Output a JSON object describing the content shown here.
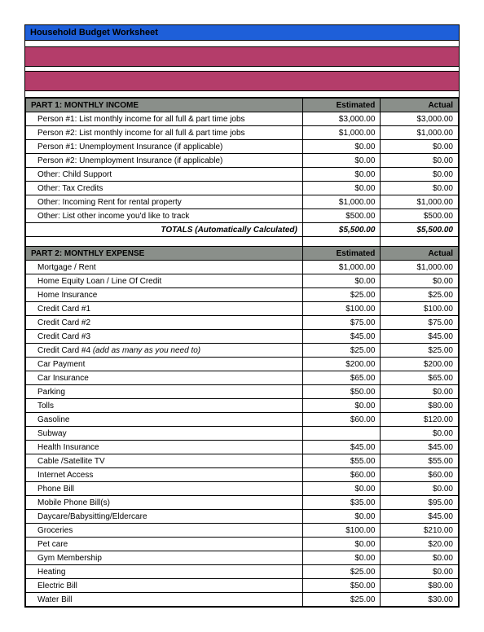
{
  "title": "Household Budget Worksheet",
  "colors": {
    "title_bg": "#1e5fd9",
    "band_bg": "#b43d6a",
    "section_bg": "#8a8f8a",
    "border": "#000000",
    "page_bg": "#ffffff"
  },
  "fonts": {
    "family": "Arial, sans-serif",
    "title_size": 11,
    "body_size": 10
  },
  "columns": {
    "estimated": "Estimated",
    "actual": "Actual"
  },
  "sections": [
    {
      "header": "PART 1: MONTHLY INCOME",
      "rows": [
        {
          "label": "Person #1: List monthly income for all full & part time jobs",
          "estimated": "$3,000.00",
          "actual": "$3,000.00"
        },
        {
          "label": "Person #2: List monthly income for all full & part time jobs",
          "estimated": "$1,000.00",
          "actual": "$1,000.00"
        },
        {
          "label": "Person #1: Unemployment Insurance (if applicable)",
          "estimated": "$0.00",
          "actual": "$0.00"
        },
        {
          "label": "Person #2: Unemployment Insurance (if applicable)",
          "estimated": "$0.00",
          "actual": "$0.00"
        },
        {
          "label": "Other: Child Support",
          "estimated": "$0.00",
          "actual": "$0.00"
        },
        {
          "label": "Other: Tax Credits",
          "estimated": "$0.00",
          "actual": "$0.00"
        },
        {
          "label": "Other: Incoming Rent for rental property",
          "estimated": "$1,000.00",
          "actual": "$1,000.00"
        },
        {
          "label": "Other: List other income you'd like to track",
          "estimated": "$500.00",
          "actual": "$500.00"
        }
      ],
      "totals": {
        "label": "TOTALS (Automatically Calculated)",
        "estimated": "$5,500.00",
        "actual": "$5,500.00"
      }
    },
    {
      "header": "PART 2: MONTHLY EXPENSE",
      "rows": [
        {
          "label": "Mortgage / Rent",
          "estimated": "$1,000.00",
          "actual": "$1,000.00"
        },
        {
          "label": "Home Equity Loan / Line Of Credit",
          "estimated": "$0.00",
          "actual": "$0.00"
        },
        {
          "label": "Home Insurance",
          "estimated": "$25.00",
          "actual": "$25.00"
        },
        {
          "label": "Credit Card #1",
          "estimated": "$100.00",
          "actual": "$100.00"
        },
        {
          "label": "Credit Card #2",
          "estimated": "$75.00",
          "actual": "$75.00"
        },
        {
          "label": "Credit Card #3",
          "estimated": "$45.00",
          "actual": "$45.00"
        },
        {
          "label": "Credit Card #4 (add as many as you need to)",
          "estimated": "$25.00",
          "actual": "$25.00",
          "italic_tail": true
        },
        {
          "label": "Car Payment",
          "estimated": "$200.00",
          "actual": "$200.00"
        },
        {
          "label": "Car Insurance",
          "estimated": "$65.00",
          "actual": "$65.00"
        },
        {
          "label": "Parking",
          "estimated": "$50.00",
          "actual": "$0.00"
        },
        {
          "label": "Tolls",
          "estimated": "$0.00",
          "actual": "$80.00"
        },
        {
          "label": "Gasoline",
          "estimated": "$60.00",
          "actual": "$120.00"
        },
        {
          "label": "Subway",
          "estimated": "",
          "actual": "$0.00"
        },
        {
          "label": "Health Insurance",
          "estimated": "$45.00",
          "actual": "$45.00"
        },
        {
          "label": "Cable /Satellite TV",
          "estimated": "$55.00",
          "actual": "$55.00"
        },
        {
          "label": "Internet Access",
          "estimated": "$60.00",
          "actual": "$60.00"
        },
        {
          "label": "Phone Bill",
          "estimated": "$0.00",
          "actual": "$0.00"
        },
        {
          "label": "Mobile Phone Bill(s)",
          "estimated": "$35.00",
          "actual": "$95.00"
        },
        {
          "label": "Daycare/Babysitting/Eldercare",
          "estimated": "$0.00",
          "actual": "$45.00"
        },
        {
          "label": "Groceries",
          "estimated": "$100.00",
          "actual": "$210.00"
        },
        {
          "label": "Pet care",
          "estimated": "$0.00",
          "actual": "$20.00"
        },
        {
          "label": "Gym Membership",
          "estimated": "$0.00",
          "actual": "$0.00"
        },
        {
          "label": "Heating",
          "estimated": "$25.00",
          "actual": "$0.00"
        },
        {
          "label": "Electric Bill",
          "estimated": "$50.00",
          "actual": "$80.00"
        },
        {
          "label": "Water Bill",
          "estimated": "$25.00",
          "actual": "$30.00"
        }
      ]
    }
  ]
}
